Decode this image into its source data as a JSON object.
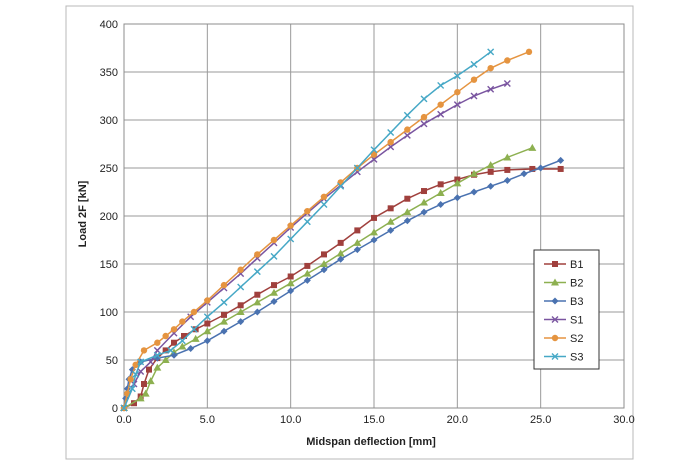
{
  "chart_data": {
    "type": "line",
    "xlabel": "Midspan deflection [mm]",
    "ylabel": "Load 2F [kN]",
    "xlim": [
      0,
      30
    ],
    "ylim": [
      0,
      400
    ],
    "x_ticks": [
      "0.0",
      "5.0",
      "10.0",
      "15.0",
      "20.0",
      "25.0",
      "30.0"
    ],
    "y_ticks": [
      "0",
      "50",
      "100",
      "150",
      "200",
      "250",
      "300",
      "350",
      "400"
    ],
    "grid": true,
    "legend_position": "right",
    "series": [
      {
        "name": "B1",
        "color": "#a0403d",
        "marker": "square",
        "points": [
          [
            0.0,
            0
          ],
          [
            0.6,
            5
          ],
          [
            1.0,
            12
          ],
          [
            1.2,
            25
          ],
          [
            1.5,
            40
          ],
          [
            2.0,
            52
          ],
          [
            2.5,
            60
          ],
          [
            3.0,
            68
          ],
          [
            3.6,
            75
          ],
          [
            4.3,
            82
          ],
          [
            5.0,
            88
          ],
          [
            6.0,
            97
          ],
          [
            7.0,
            107
          ],
          [
            8.0,
            118
          ],
          [
            9.0,
            128
          ],
          [
            10.0,
            137
          ],
          [
            11.0,
            148
          ],
          [
            12.0,
            160
          ],
          [
            13.0,
            172
          ],
          [
            14.0,
            185
          ],
          [
            15.0,
            198
          ],
          [
            16.0,
            208
          ],
          [
            17.0,
            218
          ],
          [
            18.0,
            226
          ],
          [
            19.0,
            233
          ],
          [
            20.0,
            238
          ],
          [
            21.0,
            243
          ],
          [
            22.0,
            246
          ],
          [
            23.0,
            248
          ],
          [
            24.5,
            249
          ],
          [
            26.2,
            249
          ]
        ]
      },
      {
        "name": "B2",
        "color": "#8db050",
        "marker": "triangle",
        "points": [
          [
            0.0,
            0
          ],
          [
            1.0,
            10
          ],
          [
            1.3,
            15
          ],
          [
            1.6,
            28
          ],
          [
            2.0,
            42
          ],
          [
            2.5,
            50
          ],
          [
            3.0,
            58
          ],
          [
            3.5,
            64
          ],
          [
            4.3,
            72
          ],
          [
            5.0,
            80
          ],
          [
            6.0,
            90
          ],
          [
            7.0,
            100
          ],
          [
            8.0,
            110
          ],
          [
            9.0,
            120
          ],
          [
            10.0,
            130
          ],
          [
            11.0,
            140
          ],
          [
            12.0,
            150
          ],
          [
            13.0,
            161
          ],
          [
            14.0,
            172
          ],
          [
            15.0,
            183
          ],
          [
            16.0,
            194
          ],
          [
            17.0,
            204
          ],
          [
            18.0,
            214
          ],
          [
            19.0,
            224
          ],
          [
            20.0,
            234
          ],
          [
            21.0,
            244
          ],
          [
            22.0,
            253
          ],
          [
            23.0,
            261
          ],
          [
            24.5,
            271
          ]
        ]
      },
      {
        "name": "B3",
        "color": "#4a72b0",
        "marker": "diamond",
        "points": [
          [
            0.0,
            0
          ],
          [
            0.1,
            10
          ],
          [
            0.2,
            20
          ],
          [
            0.3,
            30
          ],
          [
            0.5,
            40
          ],
          [
            1.0,
            48
          ],
          [
            2.0,
            52
          ],
          [
            3.0,
            55
          ],
          [
            4.0,
            62
          ],
          [
            5.0,
            70
          ],
          [
            6.0,
            80
          ],
          [
            7.0,
            90
          ],
          [
            8.0,
            100
          ],
          [
            9.0,
            111
          ],
          [
            10.0,
            122
          ],
          [
            11.0,
            133
          ],
          [
            12.0,
            144
          ],
          [
            13.0,
            155
          ],
          [
            14.0,
            165
          ],
          [
            15.0,
            175
          ],
          [
            16.0,
            185
          ],
          [
            17.0,
            195
          ],
          [
            18.0,
            204
          ],
          [
            19.0,
            212
          ],
          [
            20.0,
            219
          ],
          [
            21.0,
            225
          ],
          [
            22.0,
            231
          ],
          [
            23.0,
            237
          ],
          [
            24.0,
            244
          ],
          [
            25.0,
            250
          ],
          [
            26.2,
            258
          ]
        ]
      },
      {
        "name": "S1",
        "color": "#7a55a0",
        "marker": "x",
        "points": [
          [
            0.0,
            0
          ],
          [
            0.6,
            25
          ],
          [
            1.0,
            38
          ],
          [
            1.6,
            48
          ],
          [
            2.0,
            60
          ],
          [
            3.0,
            78
          ],
          [
            4.0,
            95
          ],
          [
            5.0,
            110
          ],
          [
            6.0,
            125
          ],
          [
            7.0,
            140
          ],
          [
            8.0,
            156
          ],
          [
            9.0,
            172
          ],
          [
            10.0,
            188
          ],
          [
            11.0,
            203
          ],
          [
            12.0,
            218
          ],
          [
            13.0,
            232
          ],
          [
            14.0,
            246
          ],
          [
            15.0,
            259
          ],
          [
            16.0,
            272
          ],
          [
            17.0,
            284
          ],
          [
            18.0,
            296
          ],
          [
            19.0,
            306
          ],
          [
            20.0,
            316
          ],
          [
            21.0,
            325
          ],
          [
            22.0,
            332
          ],
          [
            23.0,
            338
          ]
        ]
      },
      {
        "name": "S2",
        "color": "#e59440",
        "marker": "circle",
        "points": [
          [
            0.0,
            0
          ],
          [
            0.2,
            15
          ],
          [
            0.4,
            30
          ],
          [
            0.7,
            45
          ],
          [
            1.2,
            60
          ],
          [
            2.0,
            68
          ],
          [
            2.5,
            75
          ],
          [
            3.0,
            82
          ],
          [
            3.5,
            90
          ],
          [
            4.2,
            100
          ],
          [
            5.0,
            112
          ],
          [
            6.0,
            128
          ],
          [
            7.0,
            144
          ],
          [
            8.0,
            160
          ],
          [
            9.0,
            175
          ],
          [
            10.0,
            190
          ],
          [
            11.0,
            205
          ],
          [
            12.0,
            220
          ],
          [
            13.0,
            235
          ],
          [
            14.0,
            250
          ],
          [
            15.0,
            264
          ],
          [
            16.0,
            277
          ],
          [
            17.0,
            290
          ],
          [
            18.0,
            303
          ],
          [
            19.0,
            316
          ],
          [
            20.0,
            329
          ],
          [
            21.0,
            342
          ],
          [
            22.0,
            354
          ],
          [
            23.0,
            362
          ],
          [
            24.3,
            371
          ]
        ]
      },
      {
        "name": "S3",
        "color": "#46a8c6",
        "marker": "x",
        "points": [
          [
            0.0,
            0
          ],
          [
            0.5,
            20
          ],
          [
            0.7,
            35
          ],
          [
            1.0,
            48
          ],
          [
            2.0,
            55
          ],
          [
            2.8,
            60
          ],
          [
            3.5,
            70
          ],
          [
            4.2,
            82
          ],
          [
            5.0,
            95
          ],
          [
            6.0,
            110
          ],
          [
            7.0,
            126
          ],
          [
            8.0,
            142
          ],
          [
            9.0,
            158
          ],
          [
            10.0,
            176
          ],
          [
            11.0,
            194
          ],
          [
            12.0,
            212
          ],
          [
            13.0,
            231
          ],
          [
            14.0,
            250
          ],
          [
            15.0,
            269
          ],
          [
            16.0,
            287
          ],
          [
            17.0,
            305
          ],
          [
            18.0,
            322
          ],
          [
            19.0,
            336
          ],
          [
            20.0,
            346
          ],
          [
            21.0,
            358
          ],
          [
            22.0,
            371
          ]
        ]
      }
    ]
  }
}
